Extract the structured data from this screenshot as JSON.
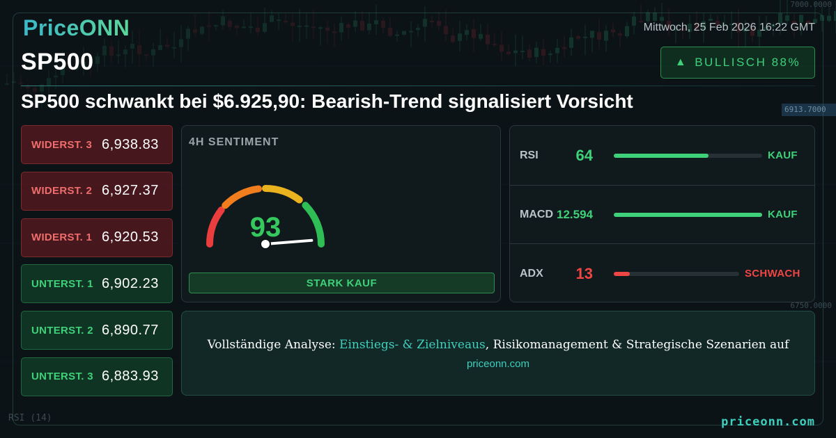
{
  "brand": {
    "logo": "PriceONN"
  },
  "symbol": "SP500",
  "datetime": "Mittwoch, 25 Feb 2026 16:22 GMT",
  "badge": {
    "arrow": "▲",
    "label": "BULLISCH 88%",
    "color": "#3fd07a"
  },
  "headline": "SP500 schwankt bei $6.925,90: Bearish-Trend signalisiert Vorsicht",
  "levels": [
    {
      "label": "WIDERST. 3",
      "value": "6,938.83",
      "kind": "resistance"
    },
    {
      "label": "WIDERST. 2",
      "value": "6,927.37",
      "kind": "resistance"
    },
    {
      "label": "WIDERST. 1",
      "value": "6,920.53",
      "kind": "resistance"
    },
    {
      "label": "UNTERST. 1",
      "value": "6,902.23",
      "kind": "support"
    },
    {
      "label": "UNTERST. 2",
      "value": "6,890.77",
      "kind": "support"
    },
    {
      "label": "UNTERST. 3",
      "value": "6,883.93",
      "kind": "support"
    }
  ],
  "sentiment": {
    "title": "4H SENTIMENT",
    "value": "93",
    "level": 93,
    "signal": "STARK KAUF"
  },
  "indicators": [
    {
      "name": "RSI",
      "value": "64",
      "level": 0.64,
      "signal": "KAUF",
      "color": "#3fd07a"
    },
    {
      "name": "MACD",
      "value": "12.594",
      "level": 1.0,
      "signal": "KAUF",
      "color": "#3fd07a"
    },
    {
      "name": "ADX",
      "value": "13",
      "level": 0.13,
      "signal": "SCHWACH",
      "color": "#f04545"
    }
  ],
  "cta": {
    "prefix": "Vollständige Analyse: ",
    "highlight": "Einstiegs- & Zielniveaus",
    "suffix": ", Risikomanagement & Strategische Szenarien auf",
    "url": "priceonn.com"
  },
  "footer_url": "priceonn.com",
  "background_chart": {
    "axis_labels": [
      "7000.0000",
      "6913.7000",
      "6750.0000"
    ],
    "rsi_label": "RSI",
    "rsi_period": "(14)"
  },
  "colors": {
    "accent": "#3ecfbe",
    "bull": "#3fd07a",
    "bear": "#f04545"
  }
}
